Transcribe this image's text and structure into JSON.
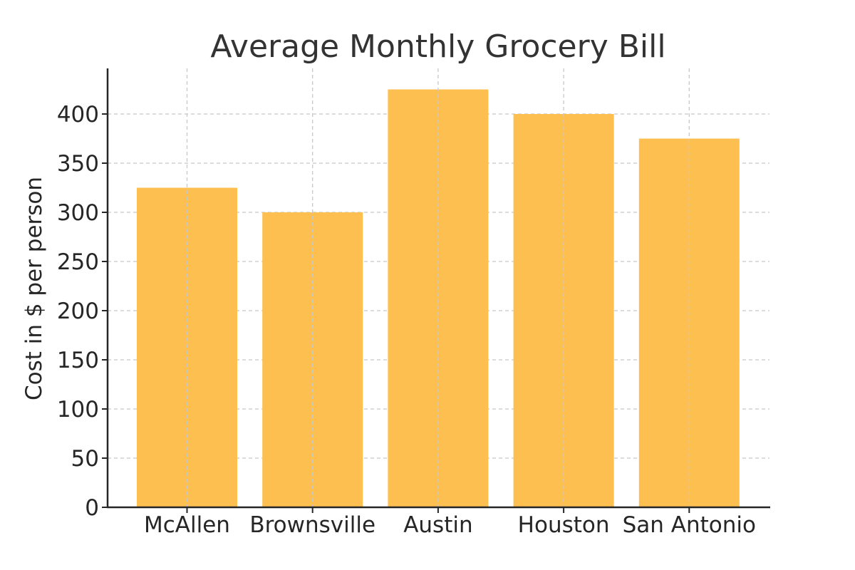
{
  "chart_data": {
    "type": "bar",
    "title": "Average Monthly Grocery Bill",
    "xlabel": "",
    "ylabel": "Cost in $ per person",
    "categories": [
      "McAllen",
      "Brownsville",
      "Austin",
      "Houston",
      "San Antonio"
    ],
    "values": [
      325,
      300,
      425,
      400,
      375
    ],
    "ylim": [
      0,
      445
    ],
    "yticks": [
      0,
      50,
      100,
      150,
      200,
      250,
      300,
      350,
      400
    ],
    "grid": true,
    "bar_color": "#fdbf50"
  }
}
